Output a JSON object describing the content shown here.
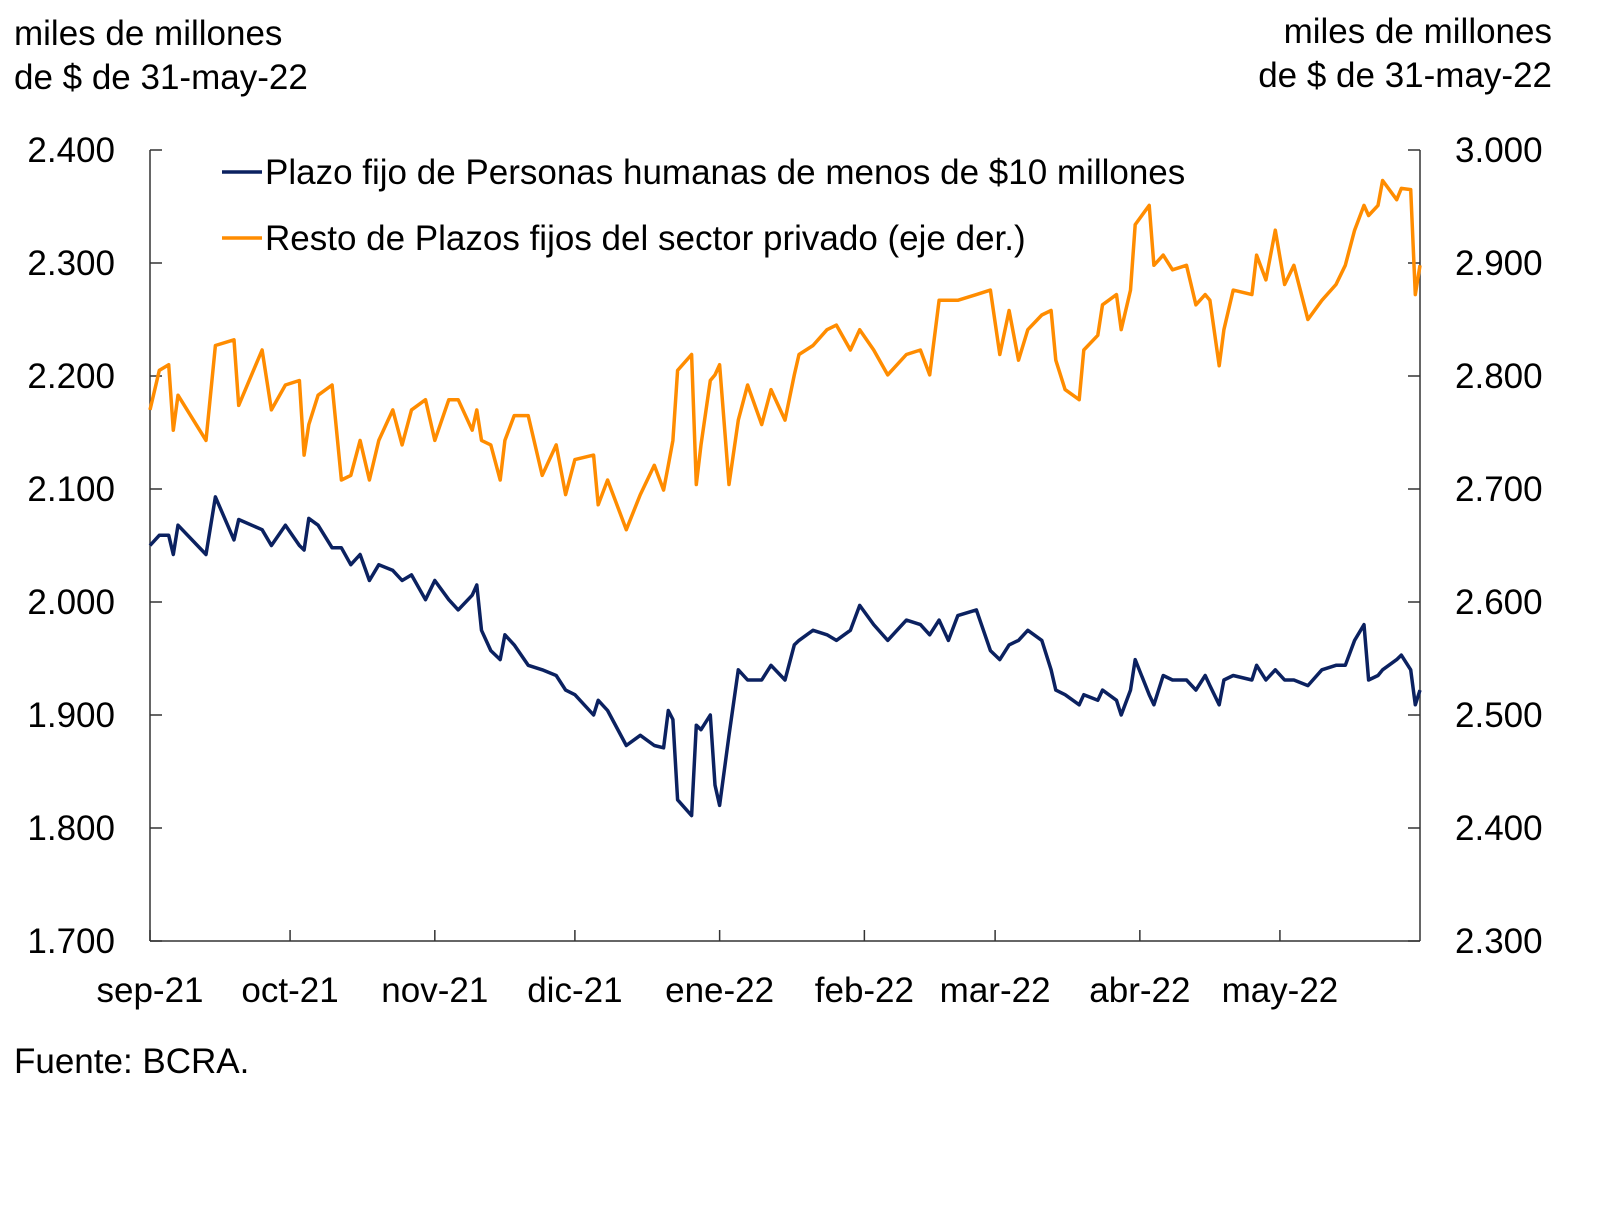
{
  "chart_data": {
    "type": "line",
    "left_unit_label": [
      "miles de millones",
      "de $ de 31-may-22"
    ],
    "right_unit_label": [
      "miles de millones",
      "de $ de 31-may-22"
    ],
    "source": "Fuente: BCRA.",
    "legend_placement": "top-left",
    "grid": false,
    "y_left": {
      "range": [
        1700,
        2400
      ],
      "ticks": [
        1700,
        1800,
        1900,
        2000,
        2100,
        2200,
        2300,
        2400
      ],
      "tick_labels": [
        "1.700",
        "1.800",
        "1.900",
        "2.000",
        "2.100",
        "2.200",
        "2.300",
        "2.400"
      ]
    },
    "y_right": {
      "range": [
        2300,
        3000
      ],
      "ticks": [
        2300,
        2400,
        2500,
        2600,
        2700,
        2800,
        2900,
        3000
      ],
      "tick_labels": [
        "2.300",
        "2.400",
        "2.500",
        "2.600",
        "2.700",
        "2.800",
        "2.900",
        "3.000"
      ]
    },
    "x_axis": {
      "range": [
        "2021-09-01",
        "2022-05-31"
      ],
      "ticks": [
        "2021-09-01",
        "2021-10-01",
        "2021-11-01",
        "2021-12-01",
        "2022-01-01",
        "2022-02-01",
        "2022-03-01",
        "2022-04-01",
        "2022-05-01"
      ],
      "tick_labels": [
        "sep-21",
        "oct-21",
        "nov-21",
        "dic-21",
        "ene-22",
        "feb-22",
        "mar-22",
        "abr-22",
        "may-22"
      ]
    },
    "x": [
      "2021-09-01",
      "2021-09-03",
      "2021-09-05",
      "2021-09-06",
      "2021-09-07",
      "2021-09-13",
      "2021-09-15",
      "2021-09-19",
      "2021-09-20",
      "2021-09-25",
      "2021-09-27",
      "2021-09-30",
      "2021-10-03",
      "2021-10-04",
      "2021-10-05",
      "2021-10-07",
      "2021-10-10",
      "2021-10-12",
      "2021-10-14",
      "2021-10-16",
      "2021-10-18",
      "2021-10-20",
      "2021-10-23",
      "2021-10-25",
      "2021-10-27",
      "2021-10-30",
      "2021-11-01",
      "2021-11-04",
      "2021-11-06",
      "2021-11-09",
      "2021-11-10",
      "2021-11-11",
      "2021-11-13",
      "2021-11-15",
      "2021-11-16",
      "2021-11-18",
      "2021-11-21",
      "2021-11-24",
      "2021-11-27",
      "2021-11-29",
      "2021-12-01",
      "2021-12-05",
      "2021-12-06",
      "2021-12-08",
      "2021-12-12",
      "2021-12-15",
      "2021-12-18",
      "2021-12-20",
      "2021-12-21",
      "2021-12-22",
      "2021-12-23",
      "2021-12-26",
      "2021-12-27",
      "2021-12-28",
      "2021-12-30",
      "2021-12-31",
      "2022-01-01",
      "2022-01-03",
      "2022-01-05",
      "2022-01-07",
      "2022-01-10",
      "2022-01-12",
      "2022-01-15",
      "2022-01-17",
      "2022-01-18",
      "2022-01-21",
      "2022-01-24",
      "2022-01-26",
      "2022-01-29",
      "2022-01-31",
      "2022-02-03",
      "2022-02-06",
      "2022-02-10",
      "2022-02-13",
      "2022-02-15",
      "2022-02-17",
      "2022-02-19",
      "2022-02-21",
      "2022-02-25",
      "2022-02-28",
      "2022-03-02",
      "2022-03-04",
      "2022-03-06",
      "2022-03-08",
      "2022-03-11",
      "2022-03-13",
      "2022-03-14",
      "2022-03-16",
      "2022-03-19",
      "2022-03-20",
      "2022-03-23",
      "2022-03-24",
      "2022-03-27",
      "2022-03-28",
      "2022-03-30",
      "2022-03-31",
      "2022-04-03",
      "2022-04-04",
      "2022-04-06",
      "2022-04-08",
      "2022-04-11",
      "2022-04-13",
      "2022-04-15",
      "2022-04-16",
      "2022-04-18",
      "2022-04-19",
      "2022-04-21",
      "2022-04-25",
      "2022-04-26",
      "2022-04-28",
      "2022-04-30",
      "2022-05-02",
      "2022-05-04",
      "2022-05-07",
      "2022-05-10",
      "2022-05-13",
      "2022-05-15",
      "2022-05-17",
      "2022-05-19",
      "2022-05-20",
      "2022-05-22",
      "2022-05-23",
      "2022-05-26",
      "2022-05-27",
      "2022-05-29",
      "2022-05-30",
      "2022-05-31"
    ],
    "series": [
      {
        "name": "Plazo fijo de Personas humanas de menos de $10 millones",
        "axis": "left",
        "color": "#0b2160",
        "values": [
          2050,
          2059,
          2059,
          2042,
          2068,
          2042,
          2093,
          2055,
          2073,
          2064,
          2050,
          2068,
          2050,
          2046,
          2074,
          2068,
          2048,
          2048,
          2033,
          2042,
          2019,
          2033,
          2028,
          2019,
          2024,
          2002,
          2019,
          2002,
          1993,
          2006,
          2015,
          1975,
          1957,
          1949,
          1971,
          1962,
          1944,
          1940,
          1935,
          1922,
          1918,
          1900,
          1913,
          1904,
          1873,
          1882,
          1873,
          1871,
          1904,
          1896,
          1825,
          1811,
          1891,
          1887,
          1900,
          1838,
          1820,
          1882,
          1940,
          1931,
          1931,
          1944,
          1931,
          1962,
          1966,
          1975,
          1971,
          1966,
          1975,
          1997,
          1980,
          1966,
          1984,
          1980,
          1971,
          1984,
          1966,
          1988,
          1993,
          1957,
          1949,
          1962,
          1966,
          1975,
          1966,
          1940,
          1922,
          1918,
          1909,
          1918,
          1913,
          1922,
          1913,
          1900,
          1922,
          1949,
          1918,
          1909,
          1935,
          1931,
          1931,
          1922,
          1935,
          1926,
          1909,
          1931,
          1935,
          1931,
          1944,
          1931,
          1940,
          1931,
          1931,
          1926,
          1940,
          1944,
          1944,
          1966,
          1980,
          1931,
          1935,
          1940,
          1949,
          1953,
          1940,
          1909,
          1922
        ]
      },
      {
        "name": "Resto de Plazos fijos del sector privado (eje der.)",
        "axis": "right",
        "color": "#ff8c00",
        "values": [
          2770,
          2805,
          2810,
          2752,
          2783,
          2743,
          2827,
          2832,
          2774,
          2823,
          2770,
          2792,
          2796,
          2730,
          2757,
          2783,
          2792,
          2708,
          2712,
          2743,
          2708,
          2743,
          2770,
          2739,
          2770,
          2779,
          2743,
          2779,
          2779,
          2752,
          2770,
          2743,
          2739,
          2708,
          2743,
          2765,
          2765,
          2712,
          2739,
          2695,
          2726,
          2730,
          2686,
          2708,
          2664,
          2695,
          2721,
          2699,
          2721,
          2743,
          2805,
          2819,
          2704,
          2739,
          2796,
          2801,
          2810,
          2704,
          2761,
          2792,
          2757,
          2788,
          2761,
          2801,
          2819,
          2827,
          2841,
          2845,
          2823,
          2841,
          2823,
          2801,
          2819,
          2823,
          2801,
          2867,
          2867,
          2867,
          2872,
          2876,
          2819,
          2858,
          2814,
          2841,
          2854,
          2858,
          2814,
          2788,
          2779,
          2823,
          2836,
          2863,
          2872,
          2841,
          2876,
          2934,
          2951,
          2898,
          2907,
          2894,
          2898,
          2863,
          2872,
          2867,
          2809,
          2841,
          2876,
          2872,
          2907,
          2885,
          2929,
          2881,
          2898,
          2850,
          2867,
          2881,
          2898,
          2929,
          2951,
          2942,
          2951,
          2973,
          2956,
          2966,
          2965,
          2872,
          2898
        ]
      }
    ]
  }
}
